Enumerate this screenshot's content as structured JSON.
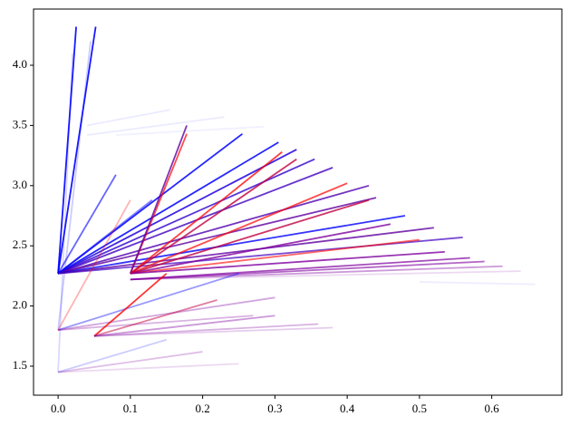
{
  "chart_data": {
    "type": "segments",
    "xlim": [
      -0.034,
      0.697
    ],
    "ylim": [
      1.259,
      4.467
    ],
    "xticks": [
      {
        "value": 0,
        "label": "0.0"
      },
      0.1,
      0.2,
      0.3,
      0.4,
      0.5,
      0.6
    ],
    "yticks": [
      1.5,
      {
        "value": 2,
        "label": "2.0"
      },
      2.5,
      {
        "value": 3,
        "label": "3.0"
      },
      3.5,
      {
        "value": 4,
        "label": "4.0"
      }
    ],
    "series": [
      {
        "color": "#0000ff",
        "alpha": 0.15,
        "x": [
          0,
          0.02
        ],
        "values": [
          1.45,
          4.1
        ]
      },
      {
        "color": "#0000ff",
        "alpha": 0.2,
        "x": [
          0,
          0.045
        ],
        "values": [
          1.8,
          4.2
        ]
      },
      {
        "color": "#0000ff",
        "alpha": 0.9,
        "x": [
          0,
          0.025
        ],
        "values": [
          2.27,
          4.32
        ]
      },
      {
        "color": "#0000ff",
        "alpha": 0.9,
        "x": [
          0,
          0.052
        ],
        "values": [
          2.27,
          4.32
        ]
      },
      {
        "color": "#0000ff",
        "alpha": 0.08,
        "x": [
          0.04,
          0.155
        ],
        "values": [
          3.5,
          3.63
        ]
      },
      {
        "color": "#0000ff",
        "alpha": 0.08,
        "x": [
          0.04,
          0.23
        ],
        "values": [
          3.42,
          3.57
        ]
      },
      {
        "color": "#0000ff",
        "alpha": 0.06,
        "x": [
          0.08,
          0.285
        ],
        "values": [
          3.42,
          3.49
        ]
      },
      {
        "color": "#0000ff",
        "alpha": 0.85,
        "x": [
          0,
          0.255
        ],
        "values": [
          2.27,
          3.43
        ]
      },
      {
        "color": "#0000ff",
        "alpha": 0.85,
        "x": [
          0,
          0.305
        ],
        "values": [
          2.27,
          3.36
        ]
      },
      {
        "color": "#2000e0",
        "alpha": 0.85,
        "x": [
          0,
          0.33
        ],
        "values": [
          2.27,
          3.3
        ]
      },
      {
        "color": "#3000d0",
        "alpha": 0.8,
        "x": [
          0,
          0.355
        ],
        "values": [
          2.27,
          3.22
        ]
      },
      {
        "color": "#4000c0",
        "alpha": 0.8,
        "x": [
          0,
          0.38
        ],
        "values": [
          2.27,
          3.15
        ]
      },
      {
        "color": "#5000b0",
        "alpha": 0.8,
        "x": [
          0,
          0.43
        ],
        "values": [
          2.27,
          3.0
        ]
      },
      {
        "color": "#6000a0",
        "alpha": 0.8,
        "x": [
          0,
          0.44
        ],
        "values": [
          2.27,
          2.9
        ]
      },
      {
        "color": "#0000ff",
        "alpha": 0.8,
        "x": [
          0,
          0.48
        ],
        "values": [
          2.27,
          2.75
        ]
      },
      {
        "color": "#6000a0",
        "alpha": 0.8,
        "x": [
          0,
          0.52
        ],
        "values": [
          2.27,
          2.65
        ]
      },
      {
        "color": "#4000c0",
        "alpha": 0.7,
        "x": [
          0,
          0.56
        ],
        "values": [
          2.27,
          2.57
        ]
      },
      {
        "color": "#0000ff",
        "alpha": 0.6,
        "x": [
          0,
          0.08
        ],
        "values": [
          2.27,
          3.09
        ]
      },
      {
        "color": "#0000ff",
        "alpha": 0.5,
        "x": [
          0,
          0.13
        ],
        "values": [
          2.27,
          2.88
        ]
      },
      {
        "color": "#ff0000",
        "alpha": 0.7,
        "x": [
          0.1,
          0.178
        ],
        "values": [
          2.27,
          3.43
        ]
      },
      {
        "color": "#6000a0",
        "alpha": 0.8,
        "x": [
          0.1,
          0.178
        ],
        "values": [
          2.27,
          3.5
        ]
      },
      {
        "color": "#ff0000",
        "alpha": 0.75,
        "x": [
          0.1,
          0.31
        ],
        "values": [
          2.27,
          3.28
        ]
      },
      {
        "color": "#c00040",
        "alpha": 0.8,
        "x": [
          0.1,
          0.33
        ],
        "values": [
          2.27,
          3.22
        ]
      },
      {
        "color": "#ff0000",
        "alpha": 0.7,
        "x": [
          0.1,
          0.4
        ],
        "values": [
          2.27,
          3.02
        ]
      },
      {
        "color": "#c00040",
        "alpha": 0.8,
        "x": [
          0.1,
          0.43
        ],
        "values": [
          2.27,
          2.88
        ]
      },
      {
        "color": "#8000a0",
        "alpha": 0.8,
        "x": [
          0.1,
          0.46
        ],
        "values": [
          2.27,
          2.68
        ]
      },
      {
        "color": "#ff0000",
        "alpha": 0.6,
        "x": [
          0.1,
          0.5
        ],
        "values": [
          2.27,
          2.55
        ]
      },
      {
        "color": "#8000a0",
        "alpha": 0.8,
        "x": [
          0.1,
          0.535
        ],
        "values": [
          2.27,
          2.45
        ]
      },
      {
        "color": "#8000a0",
        "alpha": 0.7,
        "x": [
          0.1,
          0.57
        ],
        "values": [
          2.22,
          2.4
        ]
      },
      {
        "color": "#8000a0",
        "alpha": 0.6,
        "x": [
          0.1,
          0.59
        ],
        "values": [
          2.22,
          2.37
        ]
      },
      {
        "color": "#8000a0",
        "alpha": 0.4,
        "x": [
          0.1,
          0.615
        ],
        "values": [
          2.22,
          2.33
        ]
      },
      {
        "color": "#8000a0",
        "alpha": 0.15,
        "x": [
          0.1,
          0.64
        ],
        "values": [
          2.22,
          2.29
        ]
      },
      {
        "color": "#0000ff",
        "alpha": 0.07,
        "x": [
          0.5,
          0.66
        ],
        "values": [
          2.2,
          2.18
        ]
      },
      {
        "color": "#0000ff",
        "alpha": 0.4,
        "x": [
          0,
          0.25
        ],
        "values": [
          1.8,
          2.27
        ]
      },
      {
        "color": "#8000a0",
        "alpha": 0.35,
        "x": [
          0,
          0.3
        ],
        "values": [
          1.8,
          2.07
        ]
      },
      {
        "color": "#8000a0",
        "alpha": 0.3,
        "x": [
          0,
          0.27
        ],
        "values": [
          1.8,
          1.92
        ]
      },
      {
        "color": "#ff0000",
        "alpha": 0.3,
        "x": [
          0,
          0.1
        ],
        "values": [
          1.8,
          2.88
        ]
      },
      {
        "color": "#ff0000",
        "alpha": 0.8,
        "x": [
          0.05,
          0.15
        ],
        "values": [
          1.75,
          2.27
        ]
      },
      {
        "color": "#c00040",
        "alpha": 0.5,
        "x": [
          0.05,
          0.22
        ],
        "values": [
          1.75,
          2.05
        ]
      },
      {
        "color": "#8000a0",
        "alpha": 0.4,
        "x": [
          0.05,
          0.3
        ],
        "values": [
          1.75,
          1.92
        ]
      },
      {
        "color": "#8000a0",
        "alpha": 0.3,
        "x": [
          0.05,
          0.36
        ],
        "values": [
          1.75,
          1.85
        ]
      },
      {
        "color": "#8000a0",
        "alpha": 0.2,
        "x": [
          0.05,
          0.38
        ],
        "values": [
          1.75,
          1.82
        ]
      },
      {
        "color": "#8000a0",
        "alpha": 0.25,
        "x": [
          0,
          0.2
        ],
        "values": [
          1.45,
          1.62
        ]
      },
      {
        "color": "#0000ff",
        "alpha": 0.2,
        "x": [
          0,
          0.15
        ],
        "values": [
          1.45,
          1.72
        ]
      },
      {
        "color": "#8000a0",
        "alpha": 0.15,
        "x": [
          0,
          0.25
        ],
        "values": [
          1.45,
          1.52
        ]
      }
    ]
  }
}
